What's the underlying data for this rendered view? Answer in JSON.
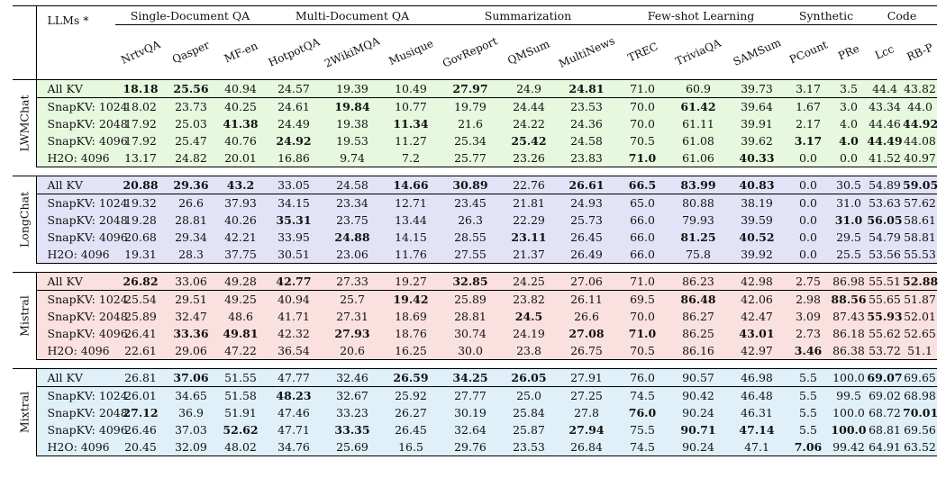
{
  "header": {
    "llms_label": "LLMs *",
    "groups": [
      {
        "label": "Single-Document QA",
        "span": 3
      },
      {
        "label": "Multi-Document QA",
        "span": 3
      },
      {
        "label": "Summarization",
        "span": 3
      },
      {
        "label": "Few-shot Learning",
        "span": 3
      },
      {
        "label": "Synthetic",
        "span": 2
      },
      {
        "label": "Code",
        "span": 2
      }
    ],
    "columns": [
      "NrtvQA",
      "Qasper",
      "MF-en",
      "HotpotQA",
      "2WikiMQA",
      "Musique",
      "GovReport",
      "QMSum",
      "MultiNews",
      "TREC",
      "TriviaQA",
      "SAMSum",
      "PCount",
      "PRe",
      "Lcc",
      "RB-P"
    ]
  },
  "colors": {
    "LWMChat": "#e6f8de",
    "LongChat": "#e3e3f8",
    "Mistral": "#fbe0e0",
    "Mixtral": "#dff0f8"
  },
  "models": [
    {
      "name": "LWMChat",
      "cls": "c-lwm",
      "rows": [
        {
          "label": "All KV",
          "values": [
            "18.18",
            "25.56",
            "40.94",
            "24.57",
            "19.39",
            "10.49",
            "27.97",
            "24.9",
            "24.81",
            "71.0",
            "60.9",
            "39.73",
            "3.17",
            "3.5",
            "44.4",
            "43.82"
          ],
          "bold": [
            0,
            1,
            6,
            8
          ]
        },
        {
          "label": "SnapKV: 1024",
          "values": [
            "18.02",
            "23.73",
            "40.25",
            "24.61",
            "19.84",
            "10.77",
            "19.79",
            "24.44",
            "23.53",
            "70.0",
            "61.42",
            "39.64",
            "1.67",
            "3.0",
            "43.34",
            "44.0"
          ],
          "bold": [
            4,
            10
          ]
        },
        {
          "label": "SnapKV: 2048",
          "values": [
            "17.92",
            "25.03",
            "41.38",
            "24.49",
            "19.38",
            "11.34",
            "21.6",
            "24.22",
            "24.36",
            "70.0",
            "61.11",
            "39.91",
            "2.17",
            "4.0",
            "44.46",
            "44.92"
          ],
          "bold": [
            2,
            5,
            15
          ]
        },
        {
          "label": "SnapKV: 4096",
          "values": [
            "17.92",
            "25.47",
            "40.76",
            "24.92",
            "19.53",
            "11.27",
            "25.34",
            "25.42",
            "24.58",
            "70.5",
            "61.08",
            "39.62",
            "3.17",
            "4.0",
            "44.49",
            "44.08"
          ],
          "bold": [
            3,
            7,
            12,
            13,
            14
          ]
        },
        {
          "label": "H2O: 4096",
          "values": [
            "13.17",
            "24.82",
            "20.01",
            "16.86",
            "9.74",
            "7.2",
            "25.77",
            "23.26",
            "23.83",
            "71.0",
            "61.06",
            "40.33",
            "0.0",
            "0.0",
            "41.52",
            "40.97"
          ],
          "bold": [
            9,
            11
          ]
        }
      ]
    },
    {
      "name": "LongChat",
      "cls": "c-long",
      "rows": [
        {
          "label": "All KV",
          "values": [
            "20.88",
            "29.36",
            "43.2",
            "33.05",
            "24.58",
            "14.66",
            "30.89",
            "22.76",
            "26.61",
            "66.5",
            "83.99",
            "40.83",
            "0.0",
            "30.5",
            "54.89",
            "59.05"
          ],
          "bold": [
            0,
            1,
            2,
            5,
            6,
            8,
            9,
            10,
            11,
            15
          ]
        },
        {
          "label": "SnapKV: 1024",
          "values": [
            "19.32",
            "26.6",
            "37.93",
            "34.15",
            "23.34",
            "12.71",
            "23.45",
            "21.81",
            "24.93",
            "65.0",
            "80.88",
            "38.19",
            "0.0",
            "31.0",
            "53.63",
            "57.62"
          ],
          "bold": []
        },
        {
          "label": "SnapKV: 2048",
          "values": [
            "19.28",
            "28.81",
            "40.26",
            "35.31",
            "23.75",
            "13.44",
            "26.3",
            "22.29",
            "25.73",
            "66.0",
            "79.93",
            "39.59",
            "0.0",
            "31.0",
            "56.05",
            "58.61"
          ],
          "bold": [
            3,
            13,
            14
          ]
        },
        {
          "label": "SnapKV: 4096",
          "values": [
            "20.68",
            "29.34",
            "42.21",
            "33.95",
            "24.88",
            "14.15",
            "28.55",
            "23.11",
            "26.45",
            "66.0",
            "81.25",
            "40.52",
            "0.0",
            "29.5",
            "54.79",
            "58.81"
          ],
          "bold": [
            4,
            7,
            10,
            11
          ]
        },
        {
          "label": "H2O: 4096",
          "values": [
            "19.31",
            "28.3",
            "37.75",
            "30.51",
            "23.06",
            "11.76",
            "27.55",
            "21.37",
            "26.49",
            "66.0",
            "75.8",
            "39.92",
            "0.0",
            "25.5",
            "53.56",
            "55.53"
          ],
          "bold": []
        }
      ]
    },
    {
      "name": "Mistral",
      "cls": "c-mis",
      "rows": [
        {
          "label": "All KV",
          "values": [
            "26.82",
            "33.06",
            "49.28",
            "42.77",
            "27.33",
            "19.27",
            "32.85",
            "24.25",
            "27.06",
            "71.0",
            "86.23",
            "42.98",
            "2.75",
            "86.98",
            "55.51",
            "52.88"
          ],
          "bold": [
            0,
            3,
            6,
            15
          ]
        },
        {
          "label": "SnapKV: 1024",
          "values": [
            "25.54",
            "29.51",
            "49.25",
            "40.94",
            "25.7",
            "19.42",
            "25.89",
            "23.82",
            "26.11",
            "69.5",
            "86.48",
            "42.06",
            "2.98",
            "88.56",
            "55.65",
            "51.87"
          ],
          "bold": [
            5,
            10,
            13
          ]
        },
        {
          "label": "SnapKV: 2048",
          "values": [
            "25.89",
            "32.47",
            "48.6",
            "41.71",
            "27.31",
            "18.69",
            "28.81",
            "24.5",
            "26.6",
            "70.0",
            "86.27",
            "42.47",
            "3.09",
            "87.43",
            "55.93",
            "52.01"
          ],
          "bold": [
            7,
            14
          ]
        },
        {
          "label": "SnapKV: 4096",
          "values": [
            "26.41",
            "33.36",
            "49.81",
            "42.32",
            "27.93",
            "18.76",
            "30.74",
            "24.19",
            "27.08",
            "71.0",
            "86.25",
            "43.01",
            "2.73",
            "86.18",
            "55.62",
            "52.65"
          ],
          "bold": [
            1,
            2,
            4,
            8,
            9,
            11
          ]
        },
        {
          "label": "H2O: 4096",
          "values": [
            "22.61",
            "29.06",
            "47.22",
            "36.54",
            "20.6",
            "16.25",
            "30.0",
            "23.8",
            "26.75",
            "70.5",
            "86.16",
            "42.97",
            "3.46",
            "86.38",
            "53.72",
            "51.1"
          ],
          "bold": [
            12
          ]
        }
      ]
    },
    {
      "name": "Mixtral",
      "cls": "c-mix",
      "rows": [
        {
          "label": "All KV",
          "values": [
            "26.81",
            "37.06",
            "51.55",
            "47.77",
            "32.46",
            "26.59",
            "34.25",
            "26.05",
            "27.91",
            "76.0",
            "90.57",
            "46.98",
            "5.5",
            "100.0",
            "69.07",
            "69.65"
          ],
          "bold": [
            1,
            5,
            6,
            7,
            14
          ]
        },
        {
          "label": "SnapKV: 1024",
          "values": [
            "26.01",
            "34.65",
            "51.58",
            "48.23",
            "32.67",
            "25.92",
            "27.77",
            "25.0",
            "27.25",
            "74.5",
            "90.42",
            "46.48",
            "5.5",
            "99.5",
            "69.02",
            "68.98"
          ],
          "bold": [
            3
          ]
        },
        {
          "label": "SnapKV: 2048",
          "values": [
            "27.12",
            "36.9",
            "51.91",
            "47.46",
            "33.23",
            "26.27",
            "30.19",
            "25.84",
            "27.8",
            "76.0",
            "90.24",
            "46.31",
            "5.5",
            "100.0",
            "68.72",
            "70.01"
          ],
          "bold": [
            0,
            9,
            15
          ]
        },
        {
          "label": "SnapKV: 4096",
          "values": [
            "26.46",
            "37.03",
            "52.62",
            "47.71",
            "33.35",
            "26.45",
            "32.64",
            "25.87",
            "27.94",
            "75.5",
            "90.71",
            "47.14",
            "5.5",
            "100.0",
            "68.81",
            "69.56"
          ],
          "bold": [
            2,
            4,
            8,
            10,
            11,
            13
          ]
        },
        {
          "label": "H2O: 4096",
          "values": [
            "20.45",
            "32.09",
            "48.02",
            "34.76",
            "25.69",
            "16.5",
            "29.76",
            "23.53",
            "26.84",
            "74.5",
            "90.24",
            "47.1",
            "7.06",
            "99.42",
            "64.91",
            "63.52"
          ],
          "bold": [
            12
          ]
        }
      ]
    }
  ]
}
